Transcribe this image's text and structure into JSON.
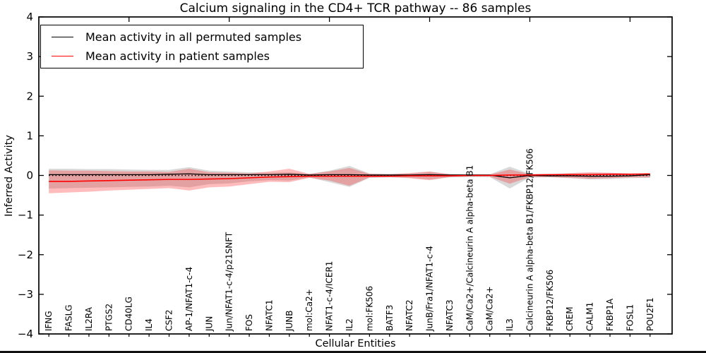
{
  "chart_data": {
    "type": "line",
    "title": "Calcium signaling in the CD4+ TCR pathway -- 86 samples",
    "xlabel": "Cellular Entities",
    "ylabel": "Inferred Activity",
    "ylim": [
      -4,
      4
    ],
    "yticks": [
      4,
      3,
      2,
      1,
      0,
      -1,
      -2,
      -3,
      -4
    ],
    "grid": false,
    "zero_line": true,
    "legend_position": "upper left",
    "top_tick_indices": [
      4,
      9,
      14,
      19,
      24,
      29
    ],
    "categories": [
      "IFNG",
      "FASLG",
      "IL2RA",
      "PTGS2",
      "CD40LG",
      "IL4",
      "CSF2",
      "AP-1/NFAT1-c-4",
      "JUN",
      "Jun/NFAT1-c-4/p21SNFT",
      "FOS",
      "NFATC1",
      "JUNB",
      "mol:Ca2+",
      "NFAT1-c-4/ICER1",
      "IL2",
      "mol:FK506",
      "BATF3",
      "NFATC2",
      "JunB/Fra1/NFAT1-c-4",
      "NFATC3",
      "CaM/Ca2+/Calcineurin A alpha-beta B1",
      "CaM/Ca2+",
      "IL3",
      "Calcineurin A alpha-beta B1/FKBP12/FK506",
      "FKBP12/FK506",
      "CREM",
      "CALM1",
      "FKBP1A",
      "FOSL1",
      "POU2F1"
    ],
    "series": [
      {
        "name": "Mean activity in all permuted samples",
        "color": "#000000",
        "values": [
          0.02,
          0.02,
          0.02,
          0.02,
          0.02,
          0.02,
          0.03,
          0.04,
          0.02,
          0.02,
          0.02,
          0.02,
          0.03,
          0.01,
          0.02,
          0.02,
          0.01,
          0.01,
          0.01,
          0.02,
          0.01,
          0.01,
          0.01,
          -0.06,
          0.0,
          -0.01,
          -0.01,
          -0.02,
          -0.02,
          -0.01,
          0.02
        ]
      },
      {
        "name": "Mean activity in patient samples",
        "color": "#ff0000",
        "values": [
          -0.15,
          -0.15,
          -0.14,
          -0.13,
          -0.12,
          -0.11,
          -0.1,
          -0.1,
          -0.09,
          -0.08,
          -0.06,
          -0.04,
          -0.03,
          -0.02,
          -0.02,
          -0.02,
          -0.02,
          -0.02,
          -0.01,
          -0.01,
          -0.01,
          0.0,
          0.0,
          0.01,
          0.01,
          0.02,
          0.02,
          0.02,
          0.03,
          0.03,
          0.04
        ]
      }
    ],
    "bands": [
      {
        "name": "permuted-samples-std-band",
        "color": "#aaaaaa",
        "opacity": 0.45,
        "upper": [
          0.17,
          0.17,
          0.16,
          0.16,
          0.15,
          0.14,
          0.14,
          0.21,
          0.12,
          0.1,
          0.08,
          0.07,
          0.08,
          0.04,
          0.12,
          0.24,
          0.05,
          0.04,
          0.05,
          0.09,
          0.04,
          0.03,
          0.03,
          0.22,
          0.04,
          0.04,
          0.05,
          0.06,
          0.06,
          0.05,
          0.05
        ],
        "lower": [
          -0.33,
          -0.32,
          -0.31,
          -0.3,
          -0.29,
          -0.28,
          -0.26,
          -0.3,
          -0.22,
          -0.2,
          -0.15,
          -0.12,
          -0.13,
          -0.05,
          -0.17,
          -0.29,
          -0.06,
          -0.05,
          -0.06,
          -0.1,
          -0.05,
          -0.04,
          -0.04,
          -0.33,
          -0.05,
          -0.05,
          -0.07,
          -0.1,
          -0.09,
          -0.07,
          -0.06
        ]
      },
      {
        "name": "patient-samples-std-band",
        "color": "#ff2222",
        "opacity": 0.3,
        "upper": [
          0.13,
          0.12,
          0.12,
          0.11,
          0.1,
          0.1,
          0.09,
          0.17,
          0.08,
          0.07,
          0.05,
          0.1,
          0.17,
          0.04,
          0.1,
          0.19,
          0.04,
          0.03,
          0.06,
          0.1,
          0.03,
          0.02,
          0.02,
          0.15,
          0.03,
          0.03,
          0.06,
          0.08,
          0.07,
          0.05,
          0.04
        ],
        "lower": [
          -0.45,
          -0.43,
          -0.41,
          -0.38,
          -0.36,
          -0.34,
          -0.32,
          -0.38,
          -0.3,
          -0.28,
          -0.22,
          -0.16,
          -0.17,
          -0.06,
          -0.13,
          -0.26,
          -0.05,
          -0.04,
          -0.07,
          -0.12,
          -0.04,
          -0.03,
          -0.03,
          -0.21,
          -0.04,
          -0.04,
          -0.06,
          -0.08,
          -0.07,
          -0.05,
          -0.05
        ]
      }
    ]
  }
}
